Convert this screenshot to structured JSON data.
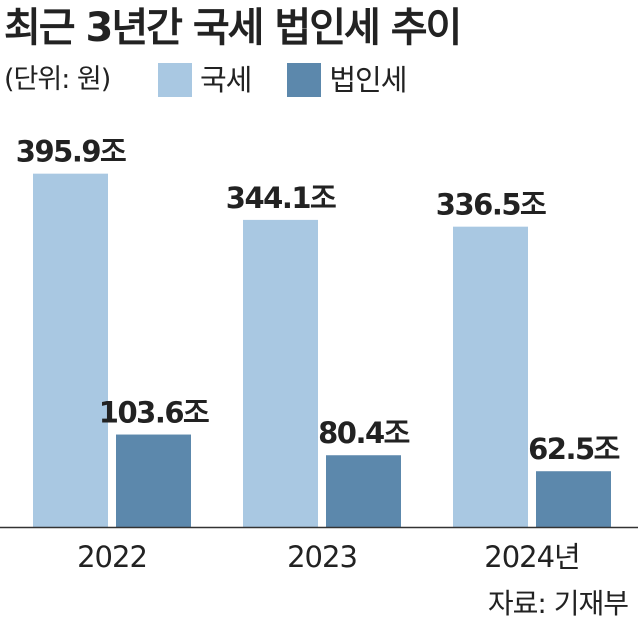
{
  "title": "최근 3년간 국세 법인세 추이",
  "unit": "(단위: 원)",
  "source": "자료: 기재부",
  "colors": {
    "national_tax": "#a9c8e2",
    "corporate_tax": "#5c88ac",
    "axis": "#333333"
  },
  "chart_data": {
    "type": "bar",
    "title": "최근 3년간 국세 법인세 추이",
    "xlabel": "",
    "ylabel": "",
    "ylim": [
      0,
      400
    ],
    "grid": false,
    "legend_position": "top",
    "categories": [
      "2022",
      "2023",
      "2024년"
    ],
    "series": [
      {
        "name": "국세",
        "values": [
          395.9,
          344.1,
          336.5
        ],
        "labels": [
          "395.9조",
          "344.1조",
          "336.5조"
        ]
      },
      {
        "name": "법인세",
        "values": [
          103.6,
          80.4,
          62.5
        ],
        "labels": [
          "103.6조",
          "80.4조",
          "62.5조"
        ]
      }
    ]
  }
}
